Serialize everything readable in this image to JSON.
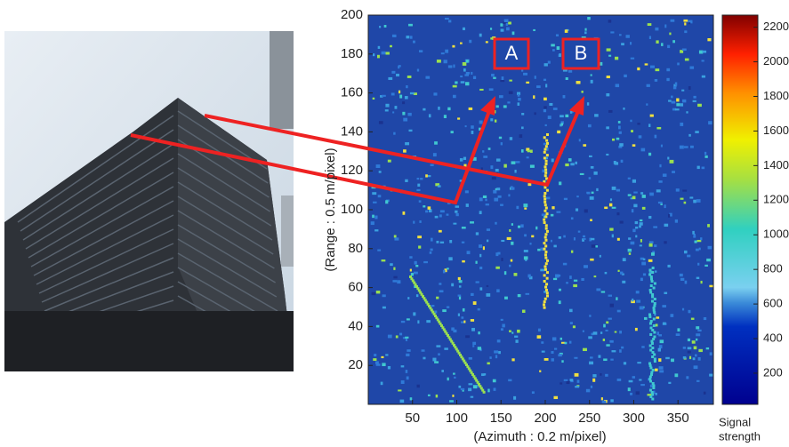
{
  "chart_data": {
    "type": "image",
    "xlabel": "(Azimuth : 0.2 m/pixel)",
    "ylabel": "(Range : 0.5 m/pixel)",
    "xlim": [
      0,
      390
    ],
    "ylim": [
      0,
      200
    ],
    "xticks": [
      50,
      100,
      150,
      200,
      250,
      300,
      350
    ],
    "yticks": [
      20,
      40,
      60,
      80,
      100,
      120,
      140,
      160,
      180,
      200
    ],
    "colorbar": {
      "label": [
        "Signal",
        "strength"
      ],
      "lim": [
        20,
        2270
      ],
      "ticks": [
        200,
        400,
        600,
        800,
        1000,
        1200,
        1400,
        1600,
        1800,
        2000,
        2200
      ]
    },
    "annotations": [
      "A",
      "B"
    ]
  }
}
